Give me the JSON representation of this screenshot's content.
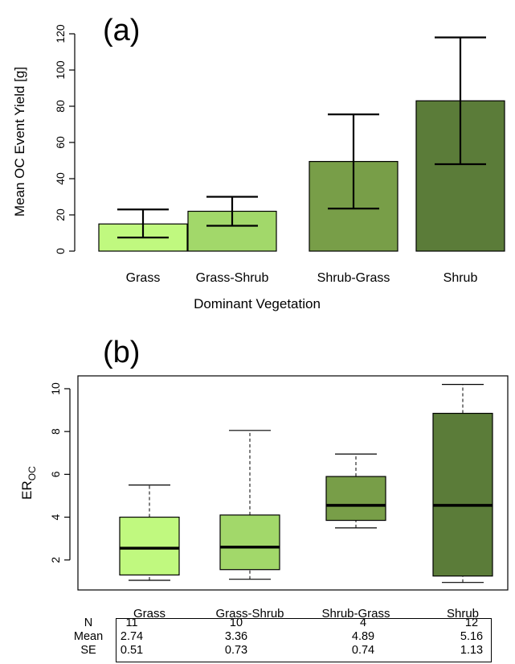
{
  "chart_data": [
    {
      "type": "bar",
      "panel_label": "(a)",
      "categories": [
        "Grass",
        "Grass-Shrub",
        "Shrub-Grass",
        "Shrub"
      ],
      "values": [
        15,
        22,
        49.5,
        83
      ],
      "error_bars": {
        "lower": [
          7.5,
          14,
          23.5,
          48
        ],
        "upper": [
          23,
          30,
          75.5,
          118
        ]
      },
      "colors": [
        "#c0f97f",
        "#a2d86a",
        "#789e48",
        "#5b7c39"
      ],
      "xlabel": "Dominant Vegetation",
      "ylabel": "Mean OC Event Yield [g]",
      "ylim": [
        0,
        120
      ],
      "yticks": [
        "0",
        "20",
        "40",
        "60",
        "80",
        "100",
        "120"
      ],
      "grid": false
    },
    {
      "type": "box",
      "panel_label": "(b)",
      "categories": [
        "Grass",
        "Grass-Shrub",
        "Shrub-Grass",
        "Shrub"
      ],
      "boxes": [
        {
          "min": 1.05,
          "q1": 1.3,
          "median": 2.55,
          "q3": 4.0,
          "max": 5.5
        },
        {
          "min": 1.1,
          "q1": 1.55,
          "median": 2.6,
          "q3": 4.1,
          "max": 8.05
        },
        {
          "min": 3.5,
          "q1": 3.85,
          "median": 4.55,
          "q3": 5.9,
          "max": 6.95
        },
        {
          "min": 0.95,
          "q1": 1.25,
          "median": 4.55,
          "q3": 8.85,
          "max": 10.2
        }
      ],
      "colors": [
        "#c0f97f",
        "#a2d86a",
        "#789e48",
        "#5b7c39"
      ],
      "ylabel_main": "ER",
      "ylabel_sub": "OC",
      "ylim": [
        0.6,
        10.6
      ],
      "yticks": [
        "2",
        "4",
        "6",
        "8",
        "10"
      ],
      "grid": false
    }
  ],
  "stats_table": {
    "row_labels": [
      "N",
      "Mean",
      "SE"
    ],
    "rows": [
      [
        "11",
        "10",
        "4",
        "12"
      ],
      [
        "2.74",
        "3.36",
        "4.89",
        "5.16"
      ],
      [
        "0.51",
        "0.73",
        "0.74",
        "1.13"
      ]
    ]
  }
}
